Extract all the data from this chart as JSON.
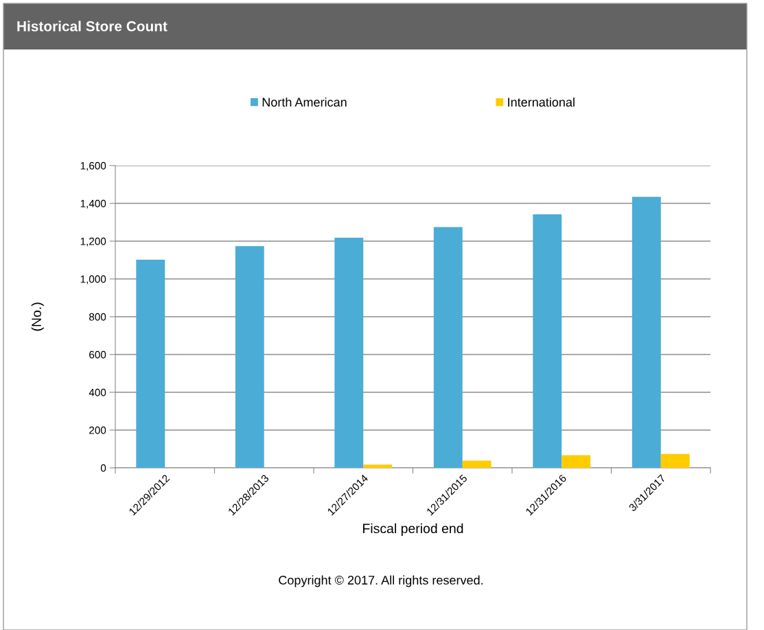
{
  "chart_data": {
    "type": "bar",
    "title": "Historical Store Count",
    "categories": [
      "12/29/2012",
      "12/28/2013",
      "12/27/2014",
      "12/31/2015",
      "12/31/2016",
      "3/31/2017"
    ],
    "series": [
      {
        "name": "North American",
        "color": "#4bacd6",
        "values": [
          1102,
          1174,
          1218,
          1275,
          1342,
          1435
        ]
      },
      {
        "name": "International",
        "color": "#ffcc00",
        "values": [
          0,
          0,
          17,
          38,
          67,
          74
        ]
      }
    ],
    "xlabel": "Fiscal period end",
    "ylabel": "(No.)",
    "ylim": [
      0,
      1600
    ],
    "yticks": [
      0,
      {
        "value": 200,
        "label": "200"
      },
      {
        "value": 400,
        "label": "400"
      },
      {
        "value": 600,
        "label": "600"
      },
      {
        "value": 800,
        "label": "800"
      },
      {
        "value": 1000,
        "label": "1,000"
      },
      {
        "value": 1200,
        "label": "1,200"
      },
      {
        "value": 1400,
        "label": "1,400"
      },
      {
        "value": 1600,
        "label": "1,600"
      }
    ],
    "grid": "y",
    "legend": "top",
    "annotations": [
      "Copyright © 2017. All rights reserved."
    ]
  }
}
